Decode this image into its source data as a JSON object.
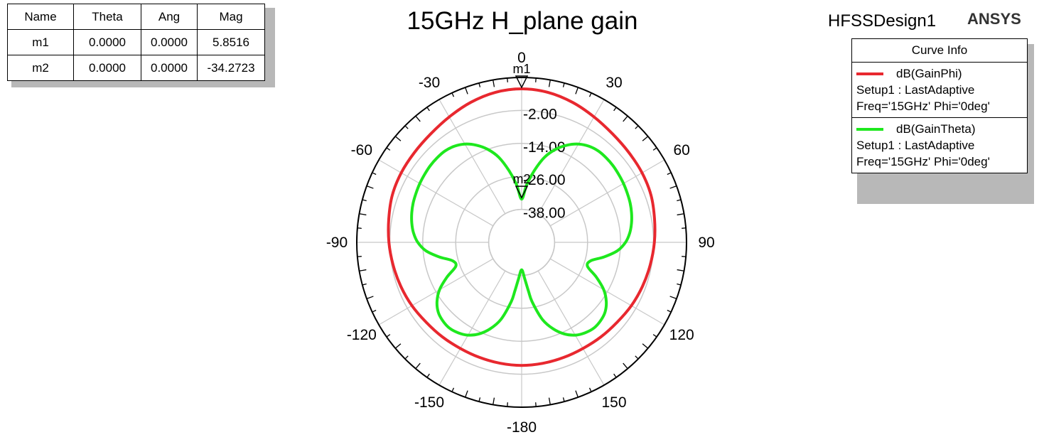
{
  "title": "15GHz H_plane gain",
  "design_name": "HFSSDesign1",
  "brand": "ANSYS",
  "marker_table": {
    "headers": [
      "Name",
      "Theta",
      "Ang",
      "Mag"
    ],
    "rows": [
      [
        "m1",
        "0.0000",
        "0.0000",
        "5.8516"
      ],
      [
        "m2",
        "0.0000",
        "0.0000",
        "-34.2723"
      ]
    ]
  },
  "legend": {
    "header": "Curve Info",
    "entries": [
      {
        "name": "dB(GainPhi)",
        "setup": "Setup1 : LastAdaptive",
        "freq": "Freq='15GHz' Phi='0deg'",
        "color": "#e8282f"
      },
      {
        "name": "dB(GainTheta)",
        "setup": "Setup1 : LastAdaptive",
        "freq": "Freq='15GHz' Phi='0deg'",
        "color": "#1ee81e"
      }
    ]
  },
  "chart_data": {
    "type": "polar",
    "title": "15GHz H_plane gain",
    "angle_unit": "deg",
    "angle_labels": [
      "0",
      "30",
      "60",
      "90",
      "120",
      "150",
      "-180",
      "-150",
      "-120",
      "-90",
      "-60",
      "-30"
    ],
    "radial_labels": [
      "-2.00",
      "-14.00",
      "-26.00",
      "-38.00"
    ],
    "radial_range": [
      -50,
      10
    ],
    "markers": [
      {
        "name": "m1",
        "theta": 0,
        "value": 5.8516
      },
      {
        "name": "m2",
        "theta": 0,
        "value": -34.2723
      }
    ],
    "series": [
      {
        "name": "dB(GainPhi)",
        "color": "#e8282f",
        "theta": [
          0,
          10,
          20,
          30,
          40,
          50,
          60,
          70,
          80,
          90,
          100,
          110,
          120,
          130,
          140,
          150,
          160,
          170,
          180
        ],
        "values": [
          5.85,
          5.4,
          4.2,
          2.7,
          1.5,
          0.9,
          0.6,
          0.1,
          -0.9,
          -1.7,
          -2.5,
          -3.2,
          -3.9,
          -4.7,
          -5.1,
          -5.4,
          -5.4,
          -5.3,
          -5.2
        ]
      },
      {
        "name": "dB(GainTheta)",
        "color": "#1ee81e",
        "theta": [
          0,
          5,
          10,
          15,
          20,
          25,
          30,
          35,
          40,
          45,
          50,
          55,
          60,
          65,
          70,
          75,
          80,
          85,
          90,
          95,
          100,
          105,
          110,
          115,
          120,
          125,
          130,
          135,
          140,
          145,
          150,
          155,
          160,
          165,
          170,
          172,
          175,
          180
        ],
        "values": [
          -34.27,
          -29.0,
          -23.5,
          -18.0,
          -14.0,
          -11.0,
          -8.7,
          -7.3,
          -6.6,
          -6.5,
          -6.6,
          -6.9,
          -7.2,
          -7.6,
          -8.0,
          -8.6,
          -9.4,
          -10.5,
          -12.2,
          -15.0,
          -19.5,
          -24.0,
          -24.5,
          -20.0,
          -15.5,
          -12.4,
          -10.4,
          -9.5,
          -9.2,
          -9.8,
          -11.0,
          -13.2,
          -16.5,
          -21.0,
          -28.0,
          -32.0,
          -36.5,
          -40.0
        ]
      }
    ]
  }
}
